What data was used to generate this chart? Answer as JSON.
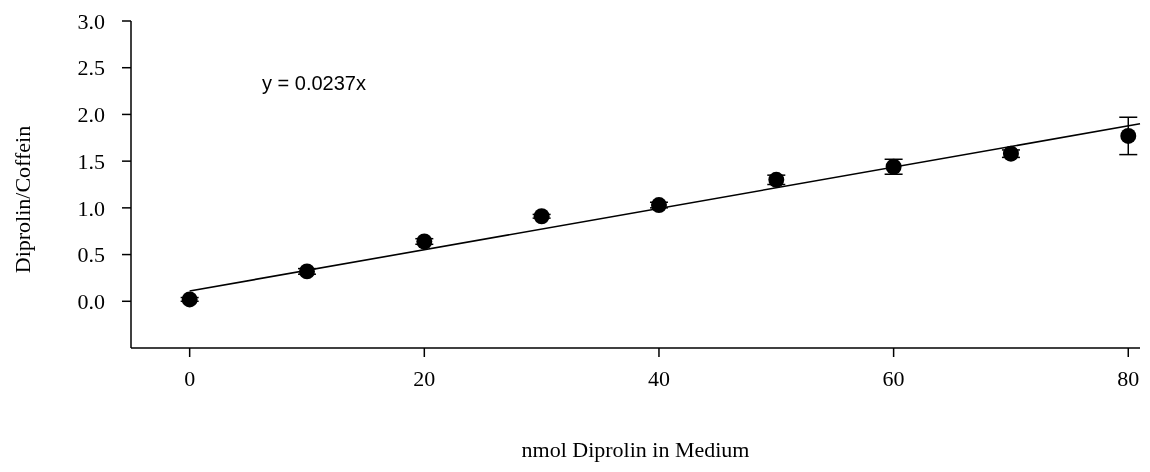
{
  "chart_data": {
    "type": "scatter",
    "xlabel": "nmol Diprolin in Medium",
    "ylabel": "Diprolin/Coffein",
    "annotations": [
      "y = 0.0237x"
    ],
    "xlim": [
      -5,
      81
    ],
    "xticks": [
      0,
      20,
      40,
      60,
      80
    ],
    "ylim": [
      -0.5,
      3.0
    ],
    "yticks": [
      {
        "value": 0,
        "label": "0.0"
      },
      {
        "value": 0.5,
        "label": "0.5"
      },
      {
        "value": 1,
        "label": "1.0"
      },
      {
        "value": 1.5,
        "label": "1.5"
      },
      {
        "value": 2,
        "label": "2.0"
      },
      {
        "value": 2.5,
        "label": "2.5"
      },
      {
        "value": 3,
        "label": "3.0"
      }
    ],
    "grid": false,
    "marker": "circle",
    "series": [
      {
        "color": "#000000",
        "x": [
          0,
          10,
          20,
          30,
          40,
          50,
          60,
          70,
          80
        ],
        "values": [
          0.02,
          0.32,
          0.64,
          0.91,
          1.03,
          1.3,
          1.44,
          1.58,
          1.77
        ],
        "errors": [
          0.02,
          0.03,
          0.03,
          0.02,
          0.03,
          0.05,
          0.08,
          0.04,
          0.2
        ]
      },
      {
        "type": "line",
        "color": "#000000",
        "x": [
          0,
          81
        ],
        "values": [
          0.11,
          1.9
        ],
        "line_style": "solid",
        "marker": "none"
      }
    ]
  }
}
